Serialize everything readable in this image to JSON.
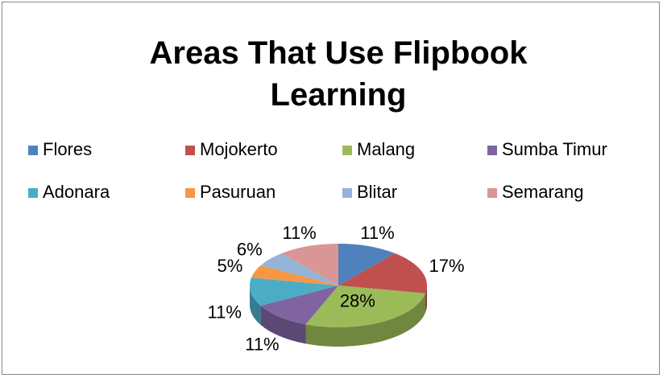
{
  "chart_data": {
    "type": "pie3d",
    "title": "Areas That Use Flipbook Learning",
    "categories": [
      "Flores",
      "Mojokerto",
      "Malang",
      "Sumba Timur",
      "Adonara",
      "Pasuruan",
      "Blitar",
      "Semarang"
    ],
    "values": [
      11,
      17,
      28,
      11,
      11,
      5,
      6,
      11
    ],
    "value_labels": [
      "11%",
      "17%",
      "28%",
      "11%",
      "11%",
      "5%",
      "6%",
      "11%"
    ],
    "colors": [
      "#4f81bd",
      "#c0504d",
      "#9bbb59",
      "#8064a2",
      "#4bacc6",
      "#f79646",
      "#95b3d7",
      "#d99694"
    ],
    "legend": "top"
  }
}
